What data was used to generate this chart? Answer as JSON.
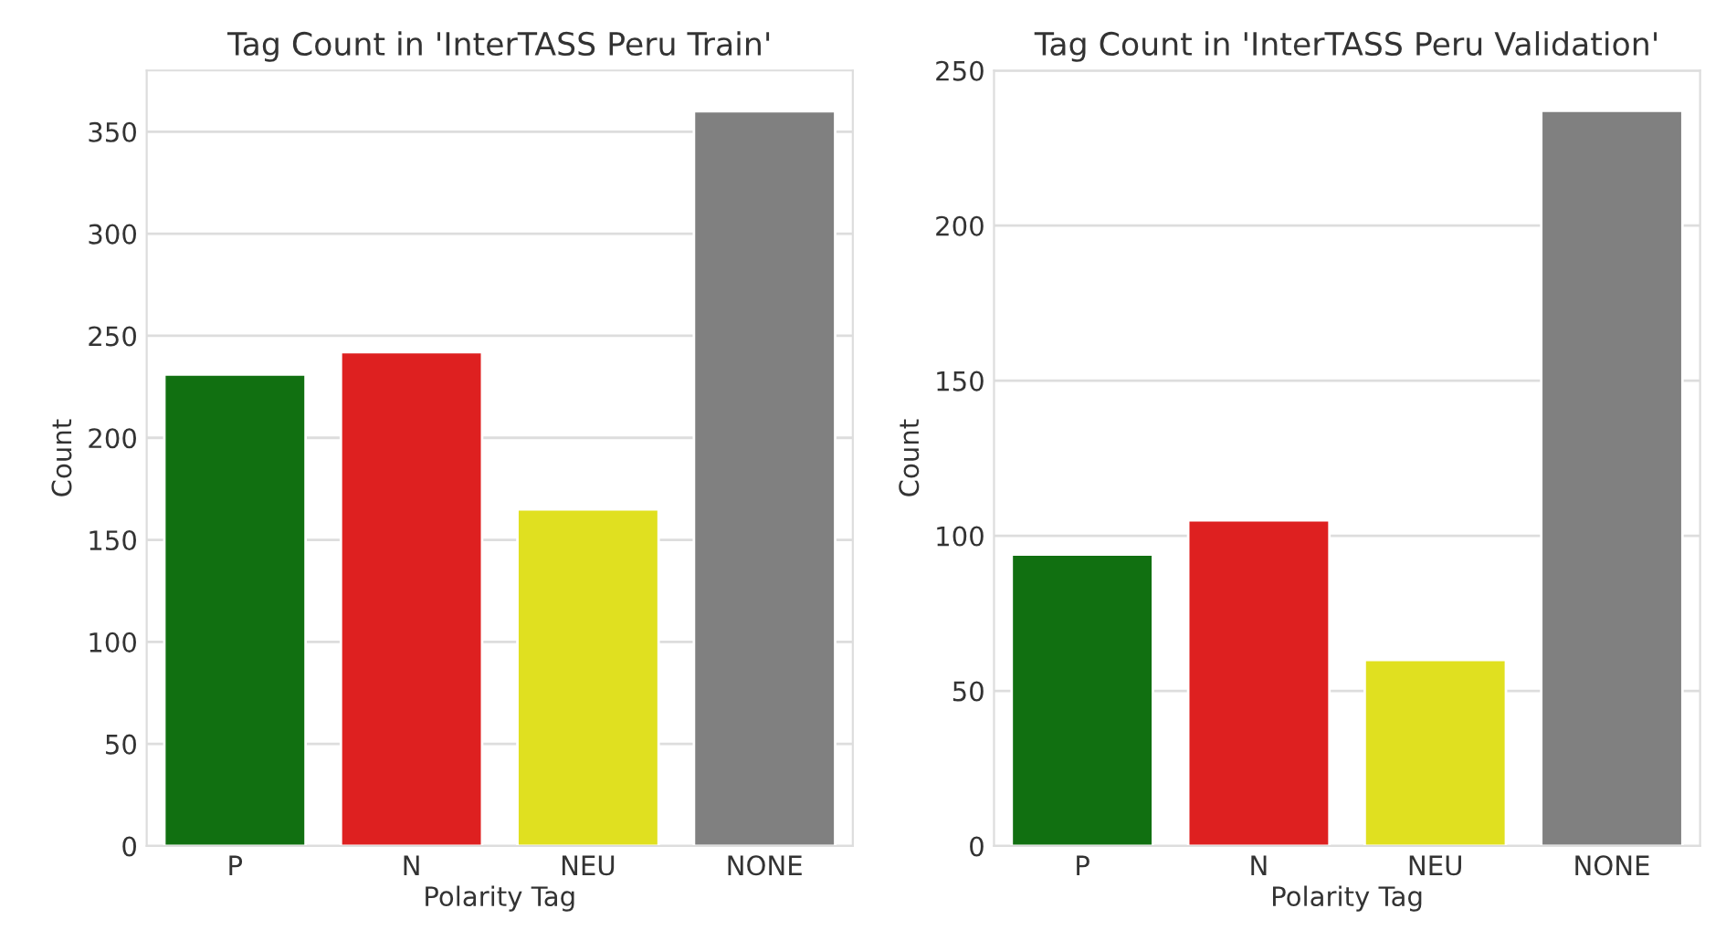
{
  "chart_data": [
    {
      "type": "bar",
      "title": "Tag Count in 'InterTASS Peru Train'",
      "xlabel": "Polarity Tag",
      "ylabel": "Count",
      "categories": [
        "P",
        "N",
        "NEU",
        "NONE"
      ],
      "values": [
        231,
        242,
        165,
        360
      ],
      "colors": [
        "#117011",
        "#de2020",
        "#e0e020",
        "#808080"
      ],
      "ylim": [
        0,
        380
      ],
      "yticks": [
        0,
        50,
        100,
        150,
        200,
        250,
        300,
        350
      ],
      "grid": "y",
      "legend": false
    },
    {
      "type": "bar",
      "title": "Tag Count in 'InterTASS Peru Validation'",
      "xlabel": "Polarity Tag",
      "ylabel": "Count",
      "categories": [
        "P",
        "N",
        "NEU",
        "NONE"
      ],
      "values": [
        94,
        105,
        60,
        237
      ],
      "colors": [
        "#117011",
        "#de2020",
        "#e0e020",
        "#808080"
      ],
      "ylim": [
        0,
        250
      ],
      "yticks": [
        0,
        50,
        100,
        150,
        200,
        250
      ],
      "grid": "y",
      "legend": false
    }
  ]
}
